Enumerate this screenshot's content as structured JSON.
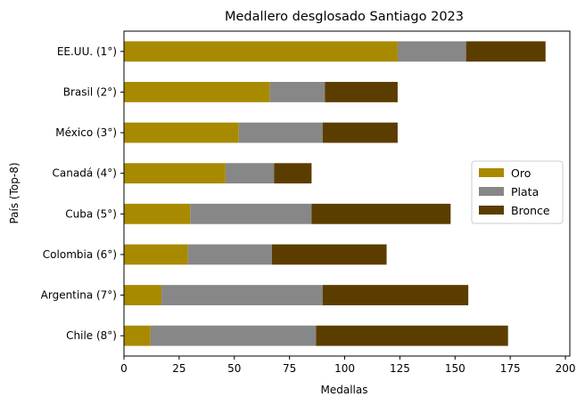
{
  "chart_data": {
    "type": "bar",
    "orientation": "horizontal",
    "stacked": true,
    "title": "Medallero desglosado Santiago 2023",
    "xlabel": "Medallas",
    "ylabel": "País (Top-8)",
    "xlim": [
      0,
      202
    ],
    "xticks": [
      0,
      25,
      50,
      75,
      100,
      125,
      150,
      175,
      200
    ],
    "grid": false,
    "legend_position": "center-right",
    "categories": [
      "EE.UU. (1°)",
      "Brasil (2°)",
      "México (3°)",
      "Canadá (4°)",
      "Cuba (5°)",
      "Colombia (6°)",
      "Argentina (7°)",
      "Chile (8°)"
    ],
    "series": [
      {
        "name": "Oro",
        "color": "#a88a00",
        "values": [
          124,
          66,
          52,
          46,
          30,
          29,
          17,
          12
        ]
      },
      {
        "name": "Plata",
        "color": "#878787",
        "values": [
          31,
          25,
          38,
          22,
          55,
          38,
          73,
          75
        ]
      },
      {
        "name": "Bronce",
        "color": "#5c3d00",
        "values": [
          36,
          33,
          34,
          17,
          63,
          52,
          66,
          87
        ]
      }
    ]
  }
}
